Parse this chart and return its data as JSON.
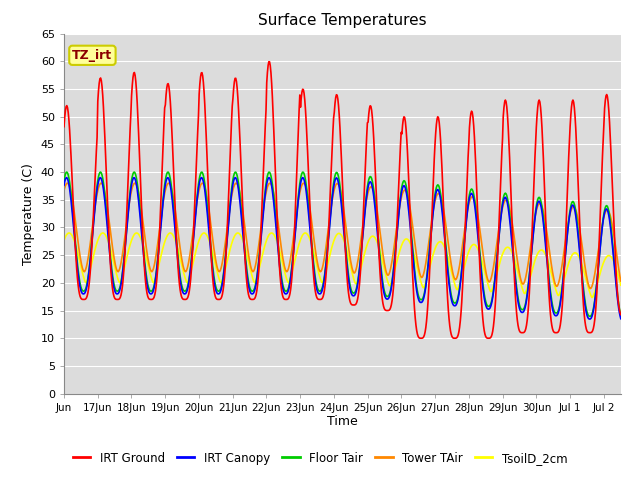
{
  "title": "Surface Temperatures",
  "ylabel": "Temperature (C)",
  "xlabel": "Time",
  "annotation_text": "TZ_irt",
  "legend_entries": [
    {
      "label": "IRT Ground",
      "color": "#FF0000"
    },
    {
      "label": "IRT Canopy",
      "color": "#0000FF"
    },
    {
      "label": "Floor Tair",
      "color": "#00CC00"
    },
    {
      "label": "Tower TAir",
      "color": "#FF8800"
    },
    {
      "label": "TsoilD_2cm",
      "color": "#FFFF00"
    }
  ],
  "ylim": [
    0,
    65
  ],
  "yticks": [
    0,
    5,
    10,
    15,
    20,
    25,
    30,
    35,
    40,
    45,
    50,
    55,
    60,
    65
  ],
  "plot_bg_color": "#DCDCDC",
  "grid_color": "#FFFFFF",
  "line_width": 1.2,
  "num_days": 16.5
}
